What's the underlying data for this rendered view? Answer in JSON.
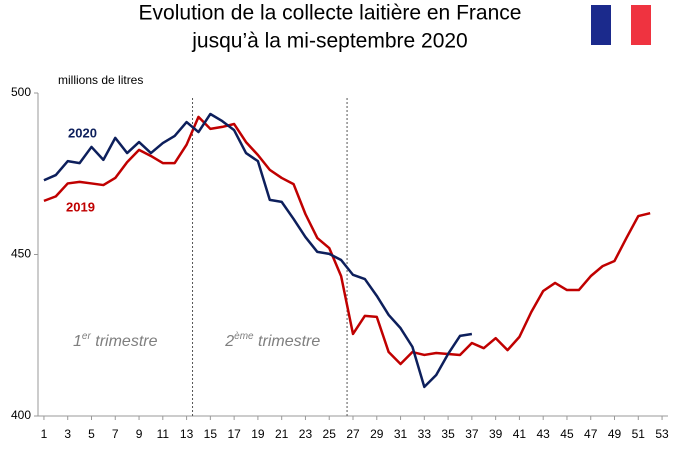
{
  "chart_data": {
    "type": "line",
    "title": [
      "Evolution de la collecte laitière en France",
      "jusqu’à la mi-septembre 2020"
    ],
    "y_axis_label": "millions de litres",
    "x": [
      1,
      2,
      3,
      4,
      5,
      6,
      7,
      8,
      9,
      10,
      11,
      12,
      13,
      14,
      15,
      16,
      17,
      18,
      19,
      20,
      21,
      22,
      23,
      24,
      25,
      26,
      27,
      28,
      29,
      30,
      31,
      32,
      33,
      34,
      35,
      36,
      37,
      38,
      39,
      40,
      41,
      42,
      43,
      44,
      45,
      46,
      47,
      48,
      49,
      50,
      51,
      52
    ],
    "series": [
      {
        "name": "2019",
        "color": "#c00000",
        "values": [
          466.6,
          468,
          472,
          472.5,
          472,
          471.5,
          473.7,
          478.6,
          482.4,
          480.5,
          478.3,
          478.3,
          484,
          492.6,
          488.9,
          489.5,
          490.4,
          484.8,
          480.8,
          476.2,
          473.7,
          471.8,
          462.5,
          455.1,
          452,
          443.3,
          425.4,
          431,
          430.7,
          419.8,
          416.1,
          419.8,
          418.9,
          419.5,
          419.2,
          418.9,
          422.6,
          421,
          424.1,
          420.4,
          424.5,
          432.2,
          438.7,
          441.2,
          439,
          439,
          443.3,
          446.4,
          448,
          455.1,
          461.9,
          462.8
        ]
      },
      {
        "name": "2020",
        "color": "#0d1f5c",
        "values": [
          473,
          474.6,
          478.9,
          478.3,
          483.3,
          479.3,
          486.1,
          481.4,
          484.8,
          481.4,
          484.5,
          486.7,
          491,
          487.9,
          493.5,
          491.3,
          488.5,
          481.4,
          478.9,
          466.9,
          466.3,
          461,
          455.4,
          450.8,
          450.2,
          448.3,
          443.7,
          442.4,
          437.2,
          431.3,
          427.2,
          421.4,
          409,
          412.7,
          419.2,
          424.8,
          425.4,
          null,
          null,
          null,
          null,
          null,
          null,
          null,
          null,
          null,
          null,
          null,
          null,
          null,
          null,
          null
        ]
      }
    ],
    "xlim": [
      0.5,
      53.5
    ],
    "xticks": [
      1,
      3,
      5,
      7,
      9,
      11,
      13,
      15,
      17,
      19,
      21,
      23,
      25,
      27,
      29,
      31,
      33,
      35,
      37,
      39,
      41,
      43,
      45,
      47,
      49,
      51,
      53
    ],
    "ylim": [
      400,
      500
    ],
    "yticks": [
      400,
      450,
      500
    ],
    "quarter_lines": [
      13.5,
      26.5
    ],
    "quarter_labels": [
      {
        "num": "1",
        "sup": "er",
        "text": " trimestre"
      },
      {
        "num": "2",
        "sup": "ème",
        "text": " trimestre"
      }
    ]
  }
}
